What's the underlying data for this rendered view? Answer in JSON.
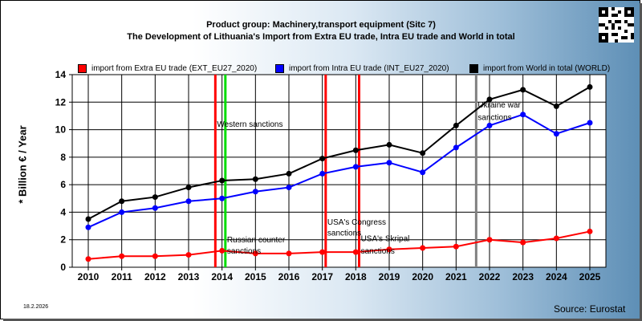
{
  "header": {
    "title_line1": "Product group: Machinery,transport equipment (Sitc 7)",
    "title_line2": "The Development of Lithuania's Import from Extra EU trade, Intra EU trade and World in total"
  },
  "footer": {
    "date": "18.2.2026",
    "source": "Source: Eurostat"
  },
  "chart_data": {
    "type": "line",
    "ylabel": "* Billion € / Year",
    "xlabel": "",
    "ylim": [
      0,
      14
    ],
    "yticks": [
      "0",
      "2",
      "4",
      "6",
      "8",
      "10",
      "12",
      "14"
    ],
    "x": [
      "2010",
      "2011",
      "2012",
      "2013",
      "2014",
      "2015",
      "2016",
      "2017",
      "2018",
      "2019",
      "2020",
      "2021",
      "2022",
      "2023",
      "2024",
      "2025"
    ],
    "grid": true,
    "legend_position": "top",
    "series": [
      {
        "name": "import from Extra EU trade (EXT_EU27_2020)",
        "color": "#ff0000",
        "values": [
          0.6,
          0.8,
          0.8,
          0.9,
          1.2,
          1.0,
          1.0,
          1.1,
          1.1,
          1.3,
          1.4,
          1.5,
          2.0,
          1.8,
          2.1,
          2.6
        ]
      },
      {
        "name": "import from Intra EU trade (INT_EU27_2020)",
        "color": "#0000ff",
        "values": [
          2.9,
          4.0,
          4.3,
          4.8,
          5.0,
          5.5,
          5.8,
          6.8,
          7.3,
          7.6,
          6.9,
          8.7,
          10.3,
          11.1,
          9.7,
          10.5
        ]
      },
      {
        "name": "import from World in total (WORLD)",
        "color": "#000000",
        "values": [
          3.5,
          4.8,
          5.1,
          5.8,
          6.3,
          6.4,
          6.8,
          7.9,
          8.5,
          8.9,
          8.3,
          10.3,
          12.2,
          12.9,
          11.7,
          13.1
        ]
      }
    ],
    "event_lines": [
      {
        "x": 2013.8,
        "color": "#ff0000"
      },
      {
        "x": 2014.1,
        "color": "#00dd00"
      },
      {
        "x": 2017.1,
        "color": "#ff0000"
      },
      {
        "x": 2018.1,
        "color": "#ff0000"
      },
      {
        "x": 2021.6,
        "color": "#808080"
      }
    ],
    "annotations": [
      {
        "text": "Western sanctions",
        "x": 2013.85,
        "y": 10.2
      },
      {
        "text": "Russian counter",
        "x": 2014.15,
        "y": 1.8
      },
      {
        "text": "sanctions",
        "x": 2014.15,
        "y": 1.0
      },
      {
        "text": "USA's Congress",
        "x": 2017.15,
        "y": 3.1
      },
      {
        "text": "sanctions",
        "x": 2017.15,
        "y": 2.3
      },
      {
        "text": "USA's Skripal",
        "x": 2018.15,
        "y": 1.9
      },
      {
        "text": "sanctions",
        "x": 2018.15,
        "y": 1.0
      },
      {
        "text": "Ukraine war",
        "x": 2021.65,
        "y": 11.6
      },
      {
        "text": "sanctions",
        "x": 2021.65,
        "y": 10.7
      }
    ]
  }
}
